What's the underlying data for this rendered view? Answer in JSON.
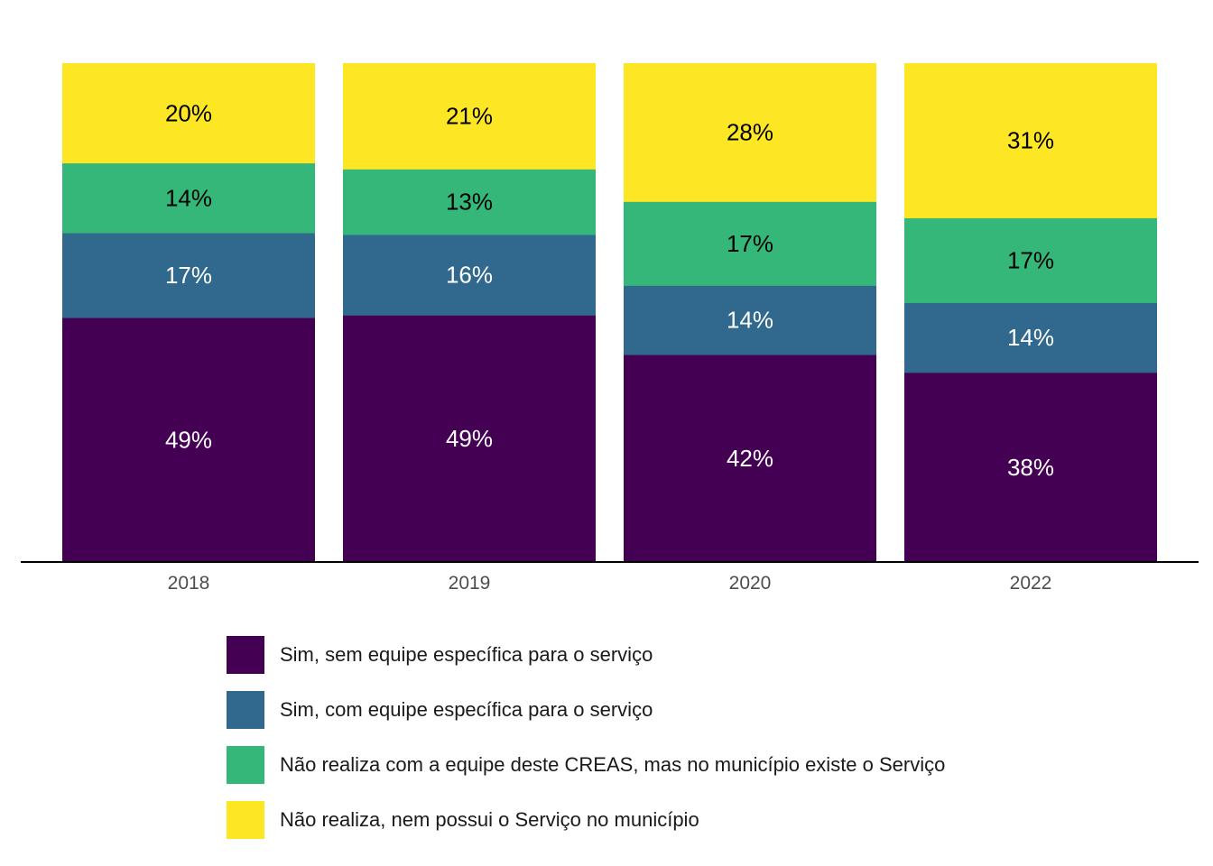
{
  "chart_data": {
    "type": "bar",
    "stacked": true,
    "normalized": true,
    "categories": [
      "2018",
      "2019",
      "2020",
      "2022"
    ],
    "series": [
      {
        "name": "Sim, sem equipe específica para o serviço",
        "color": "#440154",
        "label_color": "#ffffff",
        "values": [
          49,
          49,
          42,
          38
        ],
        "labels": [
          "49%",
          "49%",
          "42%",
          "38%"
        ]
      },
      {
        "name": "Sim, com equipe específica para o serviço",
        "color": "#31688e",
        "label_color": "#ffffff",
        "values": [
          17,
          16,
          14,
          14
        ],
        "labels": [
          "17%",
          "16%",
          "14%",
          "14%"
        ]
      },
      {
        "name": "Não realiza com a equipe deste CREAS, mas no município existe o Serviço",
        "color": "#35b779",
        "label_color": "#000000",
        "values": [
          14,
          13,
          17,
          17
        ],
        "labels": [
          "14%",
          "13%",
          "17%",
          "17%"
        ]
      },
      {
        "name": "Não realiza, nem possui o Serviço no município",
        "color": "#fde725",
        "label_color": "#000000",
        "values": [
          20,
          21,
          28,
          31
        ],
        "labels": [
          "20%",
          "21%",
          "28%",
          "31%"
        ]
      }
    ],
    "ylim": [
      0,
      100
    ],
    "grid": false,
    "legend_position": "bottom"
  }
}
